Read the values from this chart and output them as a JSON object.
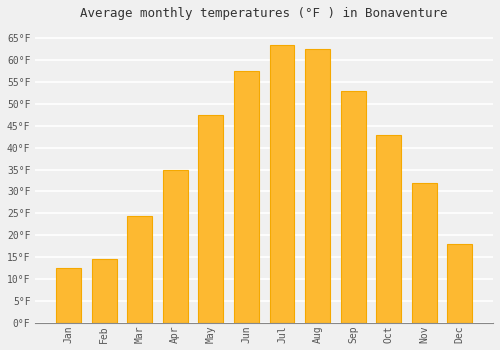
{
  "title": "Average monthly temperatures (°F ) in Bonaventure",
  "months": [
    "Jan",
    "Feb",
    "Mar",
    "Apr",
    "May",
    "Jun",
    "Jul",
    "Aug",
    "Sep",
    "Oct",
    "Nov",
    "Dec"
  ],
  "values": [
    12.5,
    14.5,
    24.5,
    35.0,
    47.5,
    57.5,
    63.5,
    62.5,
    53.0,
    43.0,
    32.0,
    18.0
  ],
  "bar_color": "#FDB931",
  "bar_edge_color": "#F5A800",
  "background_color": "#F0F0F0",
  "grid_color": "#FFFFFF",
  "ytick_labels": [
    "0°F",
    "5°F",
    "10°F",
    "15°F",
    "20°F",
    "25°F",
    "30°F",
    "35°F",
    "40°F",
    "45°F",
    "50°F",
    "55°F",
    "60°F",
    "65°F"
  ],
  "ytick_values": [
    0,
    5,
    10,
    15,
    20,
    25,
    30,
    35,
    40,
    45,
    50,
    55,
    60,
    65
  ],
  "ylim": [
    0,
    68
  ],
  "title_fontsize": 9,
  "tick_fontsize": 7,
  "font_family": "monospace",
  "bar_width": 0.7
}
